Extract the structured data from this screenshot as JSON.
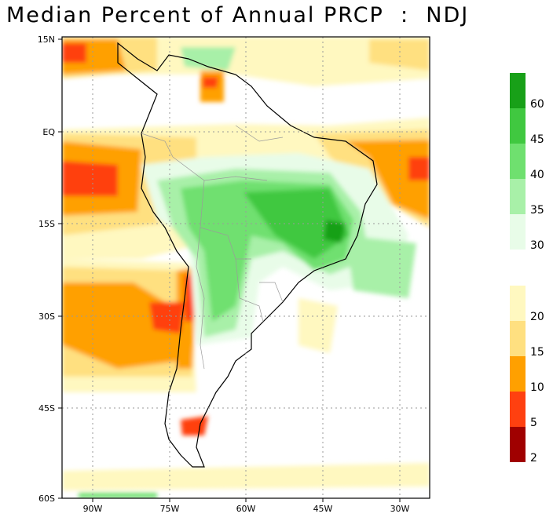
{
  "title": "Median Percent of Annual PRCP  :  NDJ",
  "lat_labels": [
    "15N",
    "EQ",
    "15S",
    "30S",
    "45S",
    "60S"
  ],
  "lon_labels": [
    "90W",
    "75W",
    "60W",
    "45W",
    "30W"
  ],
  "colorbar_top": {
    "colors": [
      "#18a018",
      "#40c840",
      "#6fe06f",
      "#a8f0a8",
      "#e8fce8",
      "#ffffff"
    ],
    "labels": [
      "60",
      "45",
      "40",
      "35",
      "30"
    ]
  },
  "colorbar_bottom": {
    "colors": [
      "#fff8c0",
      "#ffe080",
      "#ffa000",
      "#ff4010",
      "#a00000"
    ],
    "labels": [
      "20",
      "15",
      "10",
      "5",
      "2"
    ]
  }
}
